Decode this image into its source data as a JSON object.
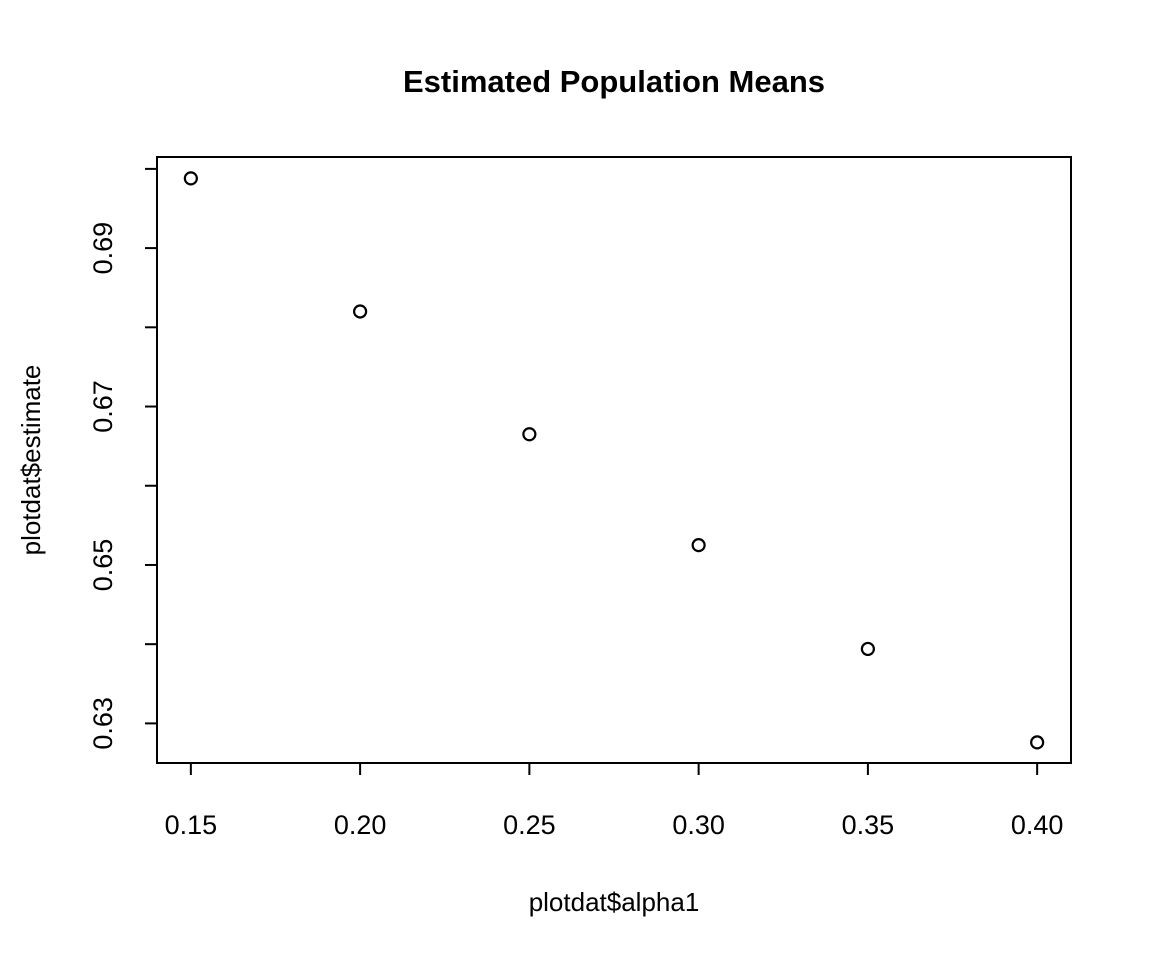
{
  "chart_data": {
    "type": "scatter",
    "title": "Estimated Population Means",
    "xlabel": "plotdat$alpha1",
    "ylabel": "plotdat$estimate",
    "xlim": [
      0.14,
      0.41
    ],
    "ylim": [
      0.625,
      0.7015
    ],
    "x_ticks": [
      0.15,
      0.2,
      0.25,
      0.3,
      0.35,
      0.4
    ],
    "x_tick_labels": [
      "0.15",
      "0.20",
      "0.25",
      "0.30",
      "0.35",
      "0.40"
    ],
    "y_ticks": [
      0.63,
      0.64,
      0.65,
      0.66,
      0.67,
      0.68,
      0.69,
      0.7
    ],
    "y_tick_labels": [
      "0.63",
      "",
      "0.65",
      "",
      "0.67",
      "",
      "0.69",
      ""
    ],
    "x": [
      0.15,
      0.2,
      0.25,
      0.3,
      0.35,
      0.4
    ],
    "y": [
      0.6988,
      0.682,
      0.6665,
      0.6525,
      0.6394,
      0.6276
    ],
    "marker": "open-circle",
    "grid": false,
    "color": "#000000"
  }
}
